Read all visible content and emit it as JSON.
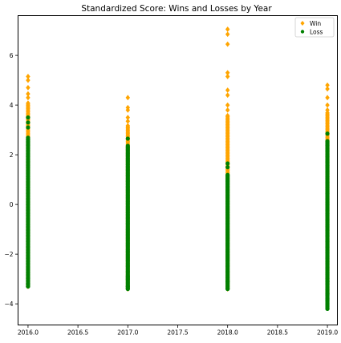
{
  "chart_data": {
    "type": "scatter",
    "title": "Standardized Score: Wins and Losses by Year",
    "xlabel": "",
    "ylabel": "",
    "xlim": [
      2015.9,
      2019.1
    ],
    "ylim": [
      -4.85,
      7.6
    ],
    "grid": false,
    "legend_placement": "top-right",
    "x_ticks": [
      2016.0,
      2016.5,
      2017.0,
      2017.5,
      2018.0,
      2018.5,
      2019.0
    ],
    "x_tick_labels": [
      "2016.0",
      "2016.5",
      "2017.0",
      "2017.5",
      "2018.0",
      "2018.5",
      "2019.0"
    ],
    "y_ticks": [
      -4,
      -2,
      0,
      2,
      4,
      6
    ],
    "y_tick_labels": [
      "−4",
      "−2",
      "0",
      "2",
      "4",
      "6"
    ],
    "series": [
      {
        "name": "Win",
        "marker": "diamond",
        "color": "#FFA500",
        "points": [
          {
            "x": 2016.0,
            "min": -3.3,
            "max": 5.2,
            "dense_max": 4.1,
            "outliers": [
              5.0,
              5.15,
              4.7,
              4.45,
              4.3
            ]
          },
          {
            "x": 2017.0,
            "min": -3.4,
            "max": 4.3,
            "dense_max": 3.2,
            "outliers": [
              4.3,
              3.9,
              3.8,
              3.5,
              3.35
            ]
          },
          {
            "x": 2018.0,
            "min": -3.4,
            "max": 7.05,
            "dense_max": 3.6,
            "outliers": [
              7.05,
              6.85,
              6.45,
              5.3,
              5.15,
              4.6,
              4.4,
              4.0,
              3.8
            ]
          },
          {
            "x": 2019.0,
            "min": -3.6,
            "max": 4.8,
            "dense_max": 3.7,
            "outliers": [
              4.8,
              4.65,
              4.3,
              4.0,
              3.8
            ]
          }
        ]
      },
      {
        "name": "Loss",
        "marker": "circle",
        "color": "#008000",
        "points": [
          {
            "x": 2016.0,
            "min": -3.3,
            "max": 3.5,
            "dense_max": 2.7,
            "outliers": [
              3.5,
              3.3,
              3.1,
              -3.2,
              -3.3
            ]
          },
          {
            "x": 2017.0,
            "min": -3.4,
            "max": 2.65,
            "dense_max": 2.4,
            "outliers": [
              2.65,
              -3.3,
              -3.4,
              -3.0,
              -2.9
            ]
          },
          {
            "x": 2018.0,
            "min": -3.4,
            "max": 1.65,
            "dense_max": 1.2,
            "outliers": [
              1.65,
              1.5,
              -3.1,
              -3.4
            ]
          },
          {
            "x": 2019.0,
            "min": -4.2,
            "max": 2.85,
            "dense_max": 2.55,
            "outliers": [
              2.85,
              -3.6,
              -3.8,
              -4.2,
              -3.1
            ]
          }
        ]
      }
    ]
  }
}
